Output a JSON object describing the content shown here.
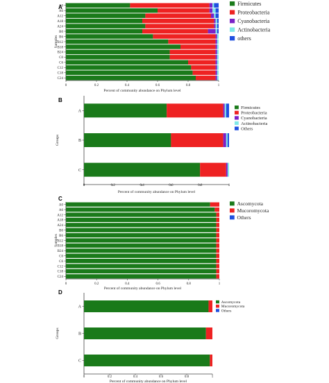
{
  "figure": {
    "colors": {
      "Firmicutes": "#1a7a1a",
      "Proteobacteria": "#ee2222",
      "Cyanobacteria": "#7a22c8",
      "Actinobacteria": "#7fe8e8",
      "others": "#1f4fe0",
      "Others": "#1f4fe0",
      "Ascomycota": "#1a7a1a",
      "Mucoromycota": "#ee2222"
    }
  },
  "chart_data": [
    {
      "panel": "A",
      "type": "bar",
      "orientation": "horizontal",
      "stacked": true,
      "xlabel": "Percent of community abundance on Phylum level",
      "ylabel": "Samples",
      "xlim": [
        0,
        1
      ],
      "xticks": [
        "0",
        "0.2",
        "0.4",
        "0.6",
        "0.8",
        "1"
      ],
      "categories": [
        "A0",
        "A6",
        "A12",
        "A18",
        "A24",
        "B0",
        "B6",
        "B12",
        "B18",
        "B24",
        "C0",
        "C6",
        "C12",
        "C18",
        "C24"
      ],
      "legend": [
        "Firmicutes",
        "Proteobacteria",
        "Cyanobacteria",
        "Actinobacteria",
        "others"
      ],
      "legend_position": "top-right",
      "series": [
        {
          "name": "Firmicutes",
          "values": [
            0.42,
            0.6,
            0.52,
            0.5,
            0.52,
            0.5,
            0.57,
            0.67,
            0.75,
            0.68,
            0.68,
            0.8,
            0.82,
            0.83,
            0.85
          ]
        },
        {
          "name": "Proteobacteria",
          "values": [
            0.52,
            0.34,
            0.43,
            0.47,
            0.45,
            0.43,
            0.41,
            0.31,
            0.23,
            0.3,
            0.3,
            0.18,
            0.16,
            0.15,
            0.13
          ]
        },
        {
          "name": "Cyanobacteria",
          "values": [
            0.02,
            0.02,
            0.02,
            0.01,
            0.01,
            0.05,
            0.01,
            0.01,
            0.01,
            0.01,
            0.01,
            0.01,
            0.01,
            0.01,
            0.01
          ]
        },
        {
          "name": "Actinobacteria",
          "values": [
            0.01,
            0.02,
            0.01,
            0.01,
            0.01,
            0.01,
            0.01,
            0.01,
            0.01,
            0.01,
            0.01,
            0.01,
            0.01,
            0.01,
            0.01
          ]
        },
        {
          "name": "others",
          "values": [
            0.03,
            0.02,
            0.02,
            0.01,
            0.01,
            0.01,
            0.0,
            0.0,
            0.0,
            0.0,
            0.0,
            0.0,
            0.0,
            0.0,
            0.0
          ]
        }
      ]
    },
    {
      "panel": "B",
      "type": "bar",
      "orientation": "horizontal",
      "stacked": true,
      "xlabel": "Percent of community abundance on Phylum level",
      "ylabel": "Groups",
      "xlim": [
        0,
        1
      ],
      "xticks": [
        "0",
        "0.2",
        "0.4",
        "0.6",
        "0.8",
        "1"
      ],
      "categories": [
        "A",
        "B",
        "C"
      ],
      "legend": [
        "Firmicutes",
        "Proteobacteria",
        "Cyanobacteria",
        "Actinobacteria",
        "Others"
      ],
      "legend_position": "top-right",
      "series": [
        {
          "name": "Firmicutes",
          "values": [
            0.57,
            0.6,
            0.8
          ]
        },
        {
          "name": "Proteobacteria",
          "values": [
            0.39,
            0.36,
            0.18
          ]
        },
        {
          "name": "Cyanobacteria",
          "values": [
            0.01,
            0.02,
            0.01
          ]
        },
        {
          "name": "Actinobacteria",
          "values": [
            0.01,
            0.01,
            0.01
          ]
        },
        {
          "name": "Others",
          "values": [
            0.02,
            0.01,
            0.0
          ]
        }
      ]
    },
    {
      "panel": "C",
      "type": "bar",
      "orientation": "horizontal",
      "stacked": true,
      "xlabel": "Percent of community abundance on Phylum level",
      "ylabel": "Samples",
      "xlim": [
        0,
        1
      ],
      "xticks": [
        "0",
        "0.2",
        "0.4",
        "0.6",
        "0.8",
        "1"
      ],
      "categories": [
        "A0",
        "A6",
        "A12",
        "A18",
        "A24",
        "B0",
        "B6",
        "B12",
        "B18",
        "B24",
        "C0",
        "C6",
        "C12",
        "C18",
        "C24"
      ],
      "legend": [
        "Ascomycota",
        "Mucoromycota",
        "Others"
      ],
      "legend_position": "top-right",
      "series": [
        {
          "name": "Ascomycota",
          "values": [
            0.94,
            0.97,
            0.98,
            0.98,
            0.98,
            0.98,
            0.98,
            0.98,
            0.98,
            0.98,
            0.98,
            0.98,
            0.98,
            0.98,
            0.98
          ]
        },
        {
          "name": "Mucoromycota",
          "values": [
            0.06,
            0.03,
            0.02,
            0.02,
            0.02,
            0.02,
            0.02,
            0.02,
            0.02,
            0.02,
            0.02,
            0.02,
            0.02,
            0.02,
            0.02
          ]
        },
        {
          "name": "Others",
          "values": [
            0,
            0,
            0,
            0,
            0,
            0,
            0,
            0,
            0,
            0,
            0,
            0,
            0,
            0,
            0
          ]
        }
      ]
    },
    {
      "panel": "D",
      "type": "bar",
      "orientation": "horizontal",
      "stacked": true,
      "xlabel": "Percent of community abundance on Phylum level",
      "ylabel": "Groups",
      "xlim": [
        0,
        1
      ],
      "xticks": [
        "0",
        "0.2",
        "0.4",
        "0.6",
        "0.8",
        "1"
      ],
      "categories": [
        "A",
        "B",
        "C"
      ],
      "legend": [
        "Ascomycota",
        "Mucoromycota",
        "Others"
      ],
      "legend_position": "top-right",
      "series": [
        {
          "name": "Ascomycota",
          "values": [
            0.97,
            0.95,
            0.98
          ]
        },
        {
          "name": "Mucoromycota",
          "values": [
            0.03,
            0.05,
            0.02
          ]
        },
        {
          "name": "Others",
          "values": [
            0.0,
            0.0,
            0.0
          ]
        }
      ]
    }
  ]
}
